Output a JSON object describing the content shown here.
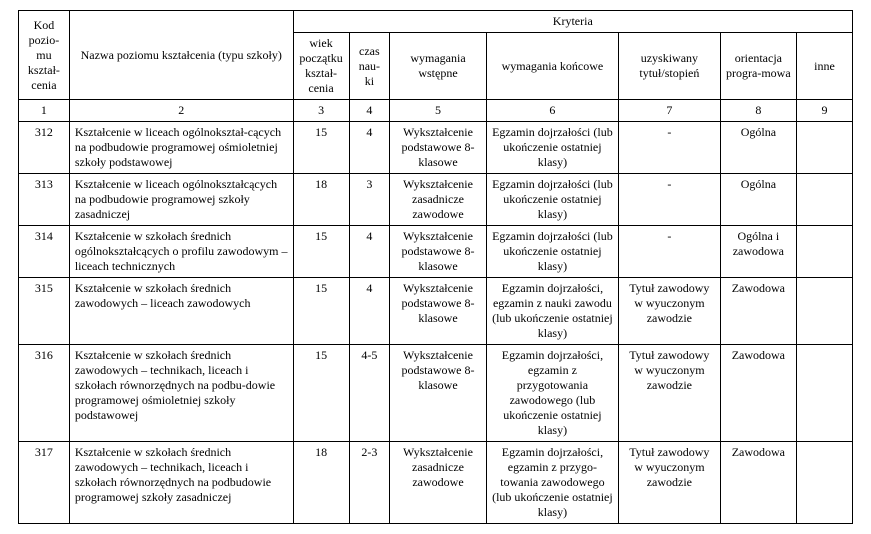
{
  "headers": {
    "kod": "Kod pozio-mu kształ-cenia",
    "nazwa": "Nazwa poziomu kształcenia (typu szkoły)",
    "kryteria": "Kryteria",
    "wiek": "wiek początku kształ-cenia",
    "czas": "czas nau-ki",
    "wstepne": "wymagania wstępne",
    "koncowe": "wymagania końcowe",
    "tytul": "uzyskiwany tytuł/stopień",
    "orient": "orientacja progra-mowa",
    "inne": "inne",
    "num": {
      "c1": "1",
      "c2": "2",
      "c3": "3",
      "c4": "4",
      "c5": "5",
      "c6": "6",
      "c7": "7",
      "c8": "8",
      "c9": "9"
    }
  },
  "rows": [
    {
      "kod": "312",
      "nazwa": "Kształcenie w liceach ogólnokształ-cących na podbudowie programowej ośmioletniej szkoły podstawowej",
      "wiek": "15",
      "czas": "4",
      "wstepne": "Wykształcenie podstawowe 8-klasowe",
      "koncowe": "Egzamin dojrzałości (lub ukończenie ostatniej klasy)",
      "tytul": "-",
      "orient": "Ogólna",
      "inne": ""
    },
    {
      "kod": "313",
      "nazwa": "Kształcenie w liceach ogólnokształcących na podbudowie programowej szkoły zasadniczej",
      "wiek": "18",
      "czas": "3",
      "wstepne": "Wykształcenie zasadnicze zawodowe",
      "koncowe": "Egzamin dojrzałości (lub ukończenie ostatniej klasy)",
      "tytul": "-",
      "orient": "Ogólna",
      "inne": ""
    },
    {
      "kod": "314",
      "nazwa": "Kształcenie w szkołach  średnich ogólnokształcących o profilu zawodowym – liceach technicznych",
      "wiek": "15",
      "czas": "4",
      "wstepne": "Wykształcenie podstawowe 8-klasowe",
      "koncowe": "Egzamin dojrzałości (lub ukończenie ostatniej klasy)",
      "tytul": "-",
      "orient": "Ogólna i zawodowa",
      "inne": ""
    },
    {
      "kod": "315",
      "nazwa": "Kształcenie w szkołach  średnich zawodowych – liceach zawodowych",
      "wiek": "15",
      "czas": "4",
      "wstepne": "Wykształcenie podstawowe 8-klasowe",
      "koncowe": "Egzamin dojrzałości, egzamin z nauki zawodu (lub ukończenie ostatniej klasy)",
      "tytul": "Tytuł zawodowy w wyuczonym zawodzie",
      "orient": "Zawodowa",
      "inne": ""
    },
    {
      "kod": "316",
      "nazwa": "Kształcenie w szkołach  średnich zawodowych – technikach, liceach i szkołach równorzędnych na podbu-dowie programowej ośmioletniej szkoły podstawowej",
      "wiek": "15",
      "czas": "4-5",
      "wstepne": "Wykształcenie podstawowe 8-klasowe",
      "koncowe": "Egzamin dojrzałości, egzamin z przygotowania zawodowego (lub ukończenie ostatniej klasy)",
      "tytul": "Tytuł zawodowy w wyuczonym zawodzie",
      "orient": "Zawodowa",
      "inne": ""
    },
    {
      "kod": "317",
      "nazwa": "Kształcenie w szkołach  średnich zawodowych – technikach, liceach i szkołach równorzędnych na podbudowie programowej szkoły zasadniczej",
      "wiek": "18",
      "czas": "2-3",
      "wstepne": "Wykształcenie zasadnicze zawodowe",
      "koncowe": "Egzamin dojrzałości, egzamin z przygo-towania zawodowego (lub ukończenie ostatniej klasy)",
      "tytul": "Tytuł zawodowy w wyuczonym zawodzie",
      "orient": "Zawodowa",
      "inne": ""
    }
  ]
}
